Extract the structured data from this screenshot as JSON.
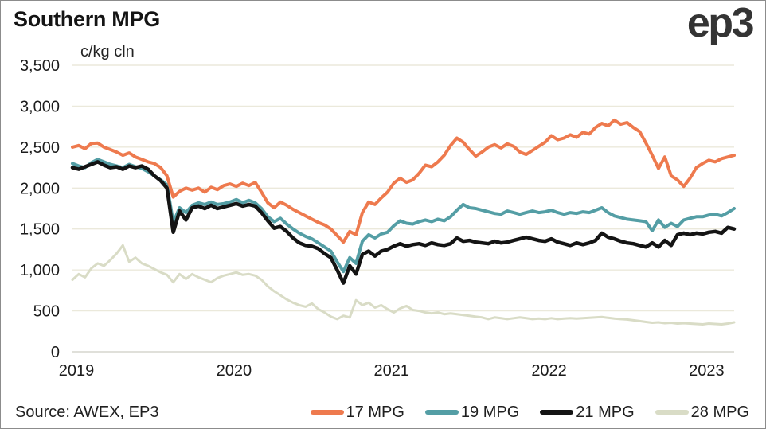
{
  "header": {
    "title": "Southern MPG",
    "logo": "ep3"
  },
  "footer": {
    "source": "Source: AWEX, EP3"
  },
  "chart_data": {
    "type": "line",
    "title": "Southern MPG",
    "ylabel": "c/kg cln",
    "xlabel": "",
    "ylim": [
      0,
      3500
    ],
    "ytick_step": 500,
    "xticks": [
      2019,
      2020,
      2021,
      2022,
      2023
    ],
    "x_start": 2019.0,
    "x_step": 0.04,
    "grid": "horizontal",
    "legend_position": "bottom",
    "series": [
      {
        "name": "17 MPG",
        "color": "#ee7a4e",
        "values": [
          2500,
          2520,
          2480,
          2545,
          2550,
          2500,
          2470,
          2440,
          2400,
          2430,
          2380,
          2350,
          2320,
          2300,
          2250,
          2150,
          1890,
          1960,
          2000,
          1975,
          2000,
          1950,
          2010,
          1980,
          2030,
          2050,
          2020,
          2060,
          2030,
          2070,
          1950,
          1820,
          1760,
          1830,
          1790,
          1740,
          1700,
          1660,
          1620,
          1580,
          1550,
          1500,
          1420,
          1340,
          1470,
          1430,
          1700,
          1830,
          1800,
          1880,
          1950,
          2060,
          2120,
          2070,
          2100,
          2180,
          2280,
          2260,
          2320,
          2400,
          2520,
          2610,
          2560,
          2470,
          2390,
          2440,
          2500,
          2530,
          2490,
          2540,
          2510,
          2440,
          2410,
          2460,
          2510,
          2560,
          2640,
          2590,
          2610,
          2650,
          2620,
          2680,
          2660,
          2740,
          2790,
          2760,
          2830,
          2780,
          2800,
          2740,
          2690,
          2550,
          2400,
          2240,
          2380,
          2150,
          2100,
          2020,
          2120,
          2250,
          2300,
          2340,
          2320,
          2360,
          2380,
          2400
        ]
      },
      {
        "name": "19 MPG",
        "color": "#549ea5",
        "values": [
          2300,
          2270,
          2250,
          2310,
          2350,
          2320,
          2290,
          2270,
          2250,
          2290,
          2260,
          2240,
          2200,
          2150,
          2100,
          2040,
          1580,
          1760,
          1700,
          1790,
          1820,
          1800,
          1830,
          1800,
          1810,
          1830,
          1860,
          1820,
          1850,
          1820,
          1750,
          1650,
          1590,
          1630,
          1560,
          1500,
          1450,
          1410,
          1380,
          1330,
          1280,
          1230,
          1100,
          980,
          1150,
          1080,
          1350,
          1430,
          1390,
          1440,
          1460,
          1540,
          1600,
          1570,
          1560,
          1590,
          1610,
          1590,
          1620,
          1600,
          1650,
          1730,
          1800,
          1760,
          1750,
          1730,
          1710,
          1690,
          1680,
          1720,
          1700,
          1680,
          1700,
          1720,
          1700,
          1710,
          1730,
          1700,
          1680,
          1700,
          1690,
          1710,
          1700,
          1730,
          1760,
          1700,
          1660,
          1640,
          1620,
          1610,
          1600,
          1590,
          1480,
          1610,
          1520,
          1570,
          1530,
          1610,
          1630,
          1650,
          1650,
          1670,
          1680,
          1660,
          1700,
          1750
        ]
      },
      {
        "name": "21 MPG",
        "color": "#141414",
        "values": [
          2250,
          2230,
          2260,
          2290,
          2320,
          2280,
          2250,
          2260,
          2230,
          2270,
          2250,
          2270,
          2230,
          2150,
          2090,
          2000,
          1460,
          1720,
          1610,
          1760,
          1780,
          1750,
          1790,
          1750,
          1770,
          1790,
          1810,
          1780,
          1800,
          1780,
          1700,
          1600,
          1510,
          1530,
          1470,
          1390,
          1330,
          1300,
          1290,
          1260,
          1200,
          1150,
          1000,
          840,
          1050,
          950,
          1190,
          1230,
          1170,
          1230,
          1250,
          1290,
          1320,
          1290,
          1310,
          1320,
          1300,
          1330,
          1310,
          1300,
          1320,
          1390,
          1350,
          1360,
          1340,
          1330,
          1320,
          1350,
          1330,
          1340,
          1360,
          1380,
          1400,
          1380,
          1360,
          1350,
          1380,
          1340,
          1320,
          1300,
          1330,
          1310,
          1330,
          1360,
          1450,
          1400,
          1380,
          1350,
          1330,
          1320,
          1300,
          1280,
          1330,
          1280,
          1360,
          1300,
          1430,
          1450,
          1430,
          1450,
          1440,
          1460,
          1470,
          1450,
          1520,
          1500
        ]
      },
      {
        "name": "28 MPG",
        "color": "#d9dcc6",
        "values": [
          880,
          950,
          910,
          1020,
          1080,
          1050,
          1120,
          1200,
          1300,
          1100,
          1150,
          1080,
          1050,
          1010,
          970,
          940,
          850,
          950,
          890,
          950,
          910,
          880,
          850,
          900,
          930,
          950,
          970,
          940,
          950,
          930,
          880,
          800,
          740,
          690,
          640,
          600,
          570,
          550,
          590,
          520,
          480,
          430,
          400,
          440,
          420,
          630,
          570,
          600,
          540,
          570,
          520,
          480,
          530,
          560,
          510,
          500,
          480,
          470,
          480,
          460,
          470,
          460,
          450,
          440,
          430,
          420,
          400,
          420,
          410,
          400,
          410,
          420,
          410,
          400,
          405,
          400,
          410,
          400,
          405,
          410,
          405,
          410,
          415,
          420,
          425,
          415,
          405,
          400,
          395,
          385,
          375,
          365,
          355,
          360,
          350,
          355,
          345,
          350,
          345,
          340,
          335,
          345,
          340,
          335,
          345,
          360
        ]
      }
    ]
  }
}
